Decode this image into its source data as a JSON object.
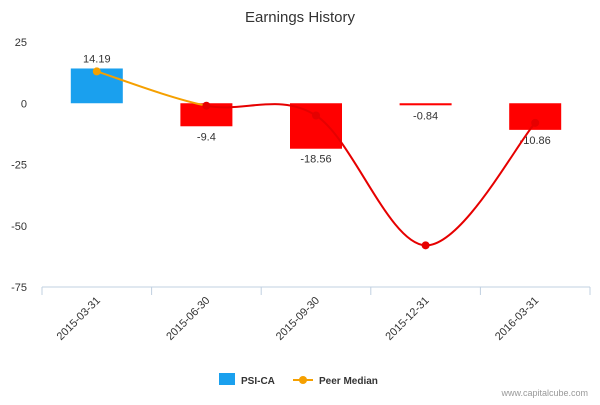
{
  "chart_data": {
    "type": "bar",
    "title": "Earnings History",
    "categories": [
      "2015-03-31",
      "2015-06-30",
      "2015-09-30",
      "2015-12-31",
      "2016-03-31"
    ],
    "series": [
      {
        "name": "PSI-CA",
        "kind": "bar",
        "values": [
          14.19,
          -9.4,
          -18.56,
          -0.84,
          -10.86
        ],
        "value_labels": [
          "14.19",
          "-9.4",
          "-18.56",
          "-0.84",
          "-10.86"
        ],
        "colors": [
          "#1aa0ee",
          "#ff0000",
          "#ff0000",
          "#ff0000",
          "#ff0000"
        ]
      },
      {
        "name": "Peer Median",
        "kind": "line",
        "values": [
          13,
          -1,
          -5,
          -58,
          -8
        ],
        "colors": [
          "#f5a000",
          "#e60000",
          "#e60000",
          "#e60000",
          "#e60000"
        ]
      }
    ],
    "ylim": [
      -75,
      25
    ],
    "yticks": [
      25,
      0,
      -25,
      -50,
      -75
    ],
    "ytick_labels": [
      "25",
      "0",
      "-25",
      "-50",
      "-75"
    ],
    "xlabel": "",
    "ylabel": "",
    "legend": [
      {
        "label": "PSI-CA",
        "color": "#1aa0ee",
        "marker": "square"
      },
      {
        "label": "Peer Median",
        "color": "#f5a000",
        "marker": "line-dot"
      }
    ],
    "legend_position": "bottom-center",
    "watermark": "www.capitalcube.com"
  }
}
